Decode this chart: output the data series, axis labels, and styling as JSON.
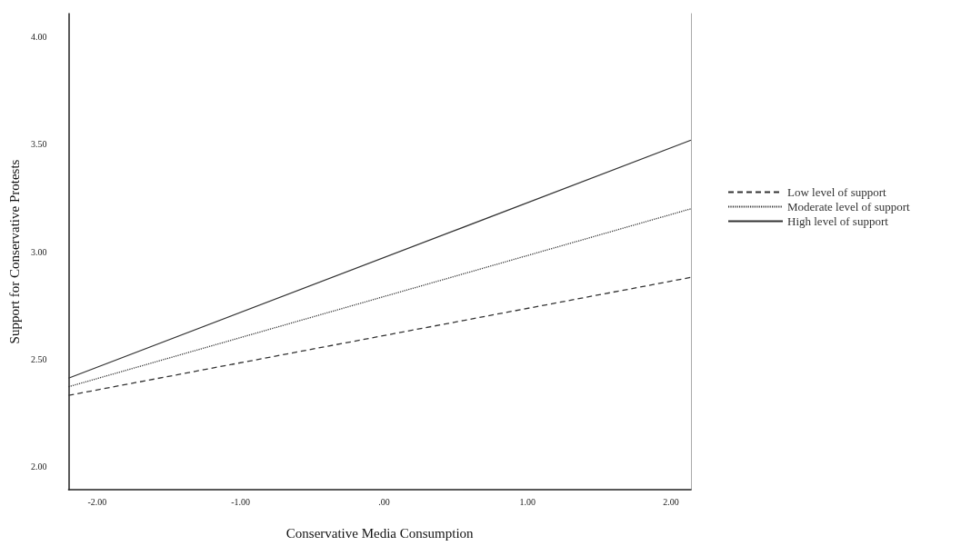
{
  "chart_data": {
    "type": "line",
    "xlabel": "Conservative Media Consumption",
    "ylabel": "Support for Conservative Protests",
    "x": [
      -2.2,
      2.14
    ],
    "series": [
      {
        "name": "Low level of support",
        "color": "#333333",
        "line_style": "dashed",
        "values": [
          2.33,
          2.88
        ]
      },
      {
        "name": "Moderate level of support",
        "color": "#333333",
        "line_style": "dotted",
        "values": [
          2.37,
          3.2
        ]
      },
      {
        "name": "High level of support",
        "color": "#333333",
        "line_style": "solid",
        "values": [
          2.41,
          3.52
        ]
      }
    ],
    "xlim": [
      -2.2,
      2.14
    ],
    "xticks": [
      {
        "value": -2,
        "label": "-2.00"
      },
      {
        "value": -1,
        "label": "-1.00"
      },
      {
        "value": 0,
        "label": ".00"
      },
      {
        "value": 1,
        "label": "1.00"
      },
      {
        "value": 2,
        "label": "2.00"
      }
    ],
    "ylim": [
      1.89,
      4.11
    ],
    "yticks": [
      {
        "value": 2,
        "label": "2.00"
      },
      {
        "value": 2.5,
        "label": "2.50"
      },
      {
        "value": 3,
        "label": "3.00"
      },
      {
        "value": 3.5,
        "label": "3.50"
      },
      {
        "value": 4,
        "label": "4.00"
      }
    ],
    "grid": false,
    "legend": "right",
    "marker": "none"
  }
}
